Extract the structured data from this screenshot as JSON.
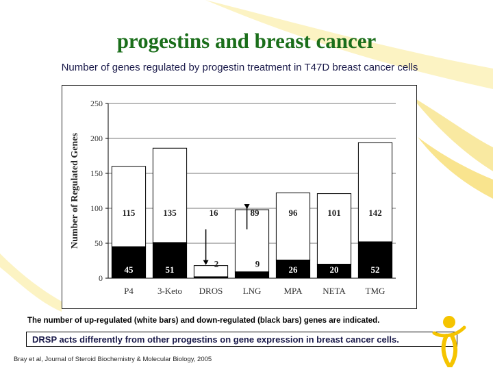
{
  "slide": {
    "title": "progestins and breast cancer",
    "subtitle": "Number of genes regulated by progestin treatment in T47D breast cancer cells",
    "caption": "The number of up-regulated (white bars) and down-regulated (black bars) genes are indicated.",
    "note": "DRSP acts differently from other progestins on gene expression in breast cancer cells.",
    "reference": "Bray et al, Journal of Steroid Biochemistry & Molecular Biology, 2005"
  },
  "colors": {
    "title": "#1a6e1a",
    "accent_yellow": "#f5c400",
    "up_bars": "#ffffff",
    "down_bars": "#000000"
  },
  "chart_data": {
    "type": "bar",
    "stacked": true,
    "categories": [
      "P4",
      "3-Keto",
      "DROS",
      "LNG",
      "MPA",
      "NETA",
      "TMG"
    ],
    "series": [
      {
        "name": "",
        "color": "#000000",
        "values": [
          45,
          51,
          2,
          9,
          26,
          20,
          52
        ]
      },
      {
        "name": "",
        "color": "#ffffff",
        "values": [
          115,
          135,
          16,
          89,
          96,
          101,
          142
        ]
      }
    ],
    "ylabel": "Number of Regulated Genes",
    "xlabel": "",
    "ylim": [
      0,
      250
    ],
    "yticks": [
      0,
      50,
      100,
      150,
      200,
      250
    ],
    "grid": true,
    "annotated_categories": [
      "DROS",
      "LNG"
    ]
  }
}
